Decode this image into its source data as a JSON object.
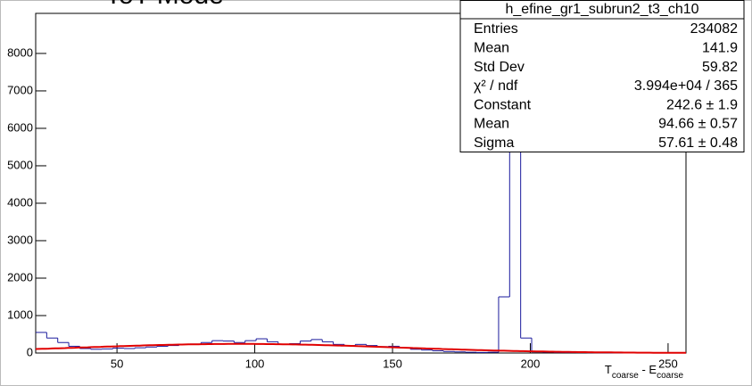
{
  "chart_data": {
    "type": "histogram",
    "title": "ToT Mode",
    "xlabel": [
      "T",
      "coarse",
      " - E",
      "coarse"
    ],
    "color": "#1a1a9c",
    "fit_color": "#e00000",
    "xlim": [
      20.5,
      256.5
    ],
    "ylim": [
      0,
      9070
    ],
    "xticks": [
      50,
      100,
      150,
      200,
      250
    ],
    "yticks": [
      0,
      1000,
      2000,
      3000,
      4000,
      5000,
      6000,
      7000,
      8000
    ],
    "bins": [
      20.5,
      24.5,
      28.5,
      32.5,
      36.5,
      40.5,
      44.5,
      48.5,
      52.5,
      56.5,
      60.5,
      64.5,
      68.5,
      72.5,
      76.5,
      80.5,
      84.5,
      88.5,
      92.5,
      96.5,
      100.5,
      104.5,
      108.5,
      112.5,
      116.5,
      120.5,
      124.5,
      128.5,
      132.5,
      136.5,
      140.5,
      144.5,
      148.5,
      152.5,
      156.5,
      160.5,
      164.5,
      168.5,
      172.5,
      176.5,
      180.5,
      184.5,
      188.5,
      192.5,
      196.5,
      200.5,
      204.5,
      208.5,
      212.5,
      216.5,
      220.5,
      224.5,
      228.5,
      232.5,
      236.5,
      240.5,
      244.5,
      248.5,
      252.5,
      256.5
    ],
    "values": [
      550,
      400,
      280,
      180,
      120,
      100,
      110,
      130,
      120,
      140,
      160,
      180,
      200,
      230,
      240,
      280,
      330,
      320,
      280,
      330,
      380,
      300,
      230,
      250,
      320,
      360,
      300,
      230,
      200,
      230,
      200,
      170,
      180,
      140,
      100,
      80,
      60,
      40,
      30,
      20,
      15,
      20,
      1500,
      9000,
      400,
      30,
      20,
      15,
      12,
      10,
      8,
      6,
      5,
      5,
      4,
      4,
      3,
      3,
      2
    ],
    "stats": {
      "name": "h_efine_gr1_subrun2_t3_ch10",
      "rows": [
        {
          "label": "Entries",
          "value": "234082"
        },
        {
          "label": "Mean",
          "value": "141.9"
        },
        {
          "label": "Std Dev",
          "value": "59.82"
        },
        {
          "label": "χ² / ndf",
          "value": "3.994e+04 / 365"
        },
        {
          "label": "Constant",
          "value": "242.6 ± 1.9",
          "number": 242.6
        },
        {
          "label": "Mean",
          "value": "94.66 ± 0.57",
          "number": 94.66
        },
        {
          "label": "Sigma",
          "value": "57.61 ± 0.48",
          "number": 57.61
        }
      ]
    }
  }
}
